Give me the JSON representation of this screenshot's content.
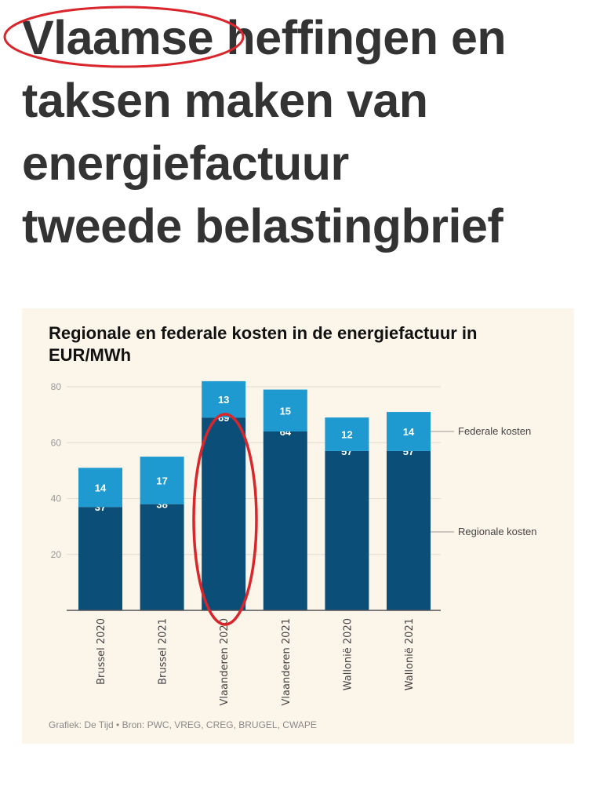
{
  "headline": {
    "lines": [
      "Vlaamse heffingen en",
      "taksen maken van",
      "energiefactuur",
      "tweede belastingbrief"
    ],
    "highlighted_word": "Vlaamse"
  },
  "annotation_color": "#d9262c",
  "chart_data": {
    "type": "bar",
    "stacked": true,
    "title": "Regionale en federale kosten in de energiefactuur in EUR/MWh",
    "categories": [
      "Brussel 2020",
      "Brussel 2021",
      "Vlaanderen 2020",
      "Vlaanderen 2021",
      "Wallonië 2020",
      "Wallonië 2021"
    ],
    "series": [
      {
        "name": "Regionale kosten",
        "color": "#0b4f79",
        "values": [
          37,
          38,
          69,
          64,
          57,
          57
        ]
      },
      {
        "name": "Federale kosten",
        "color": "#1e9ad0",
        "values": [
          14,
          17,
          13,
          15,
          12,
          14
        ]
      }
    ],
    "yticks": [
      20,
      40,
      60,
      80
    ],
    "ylim": [
      0,
      80
    ],
    "grid": true,
    "legend": "right, inline labels",
    "highlighted_category": "Vlaanderen 2020",
    "source": "Grafiek: De Tijd • Bron: PWC, VREG, CREG, BRUGEL, CWAPE"
  }
}
